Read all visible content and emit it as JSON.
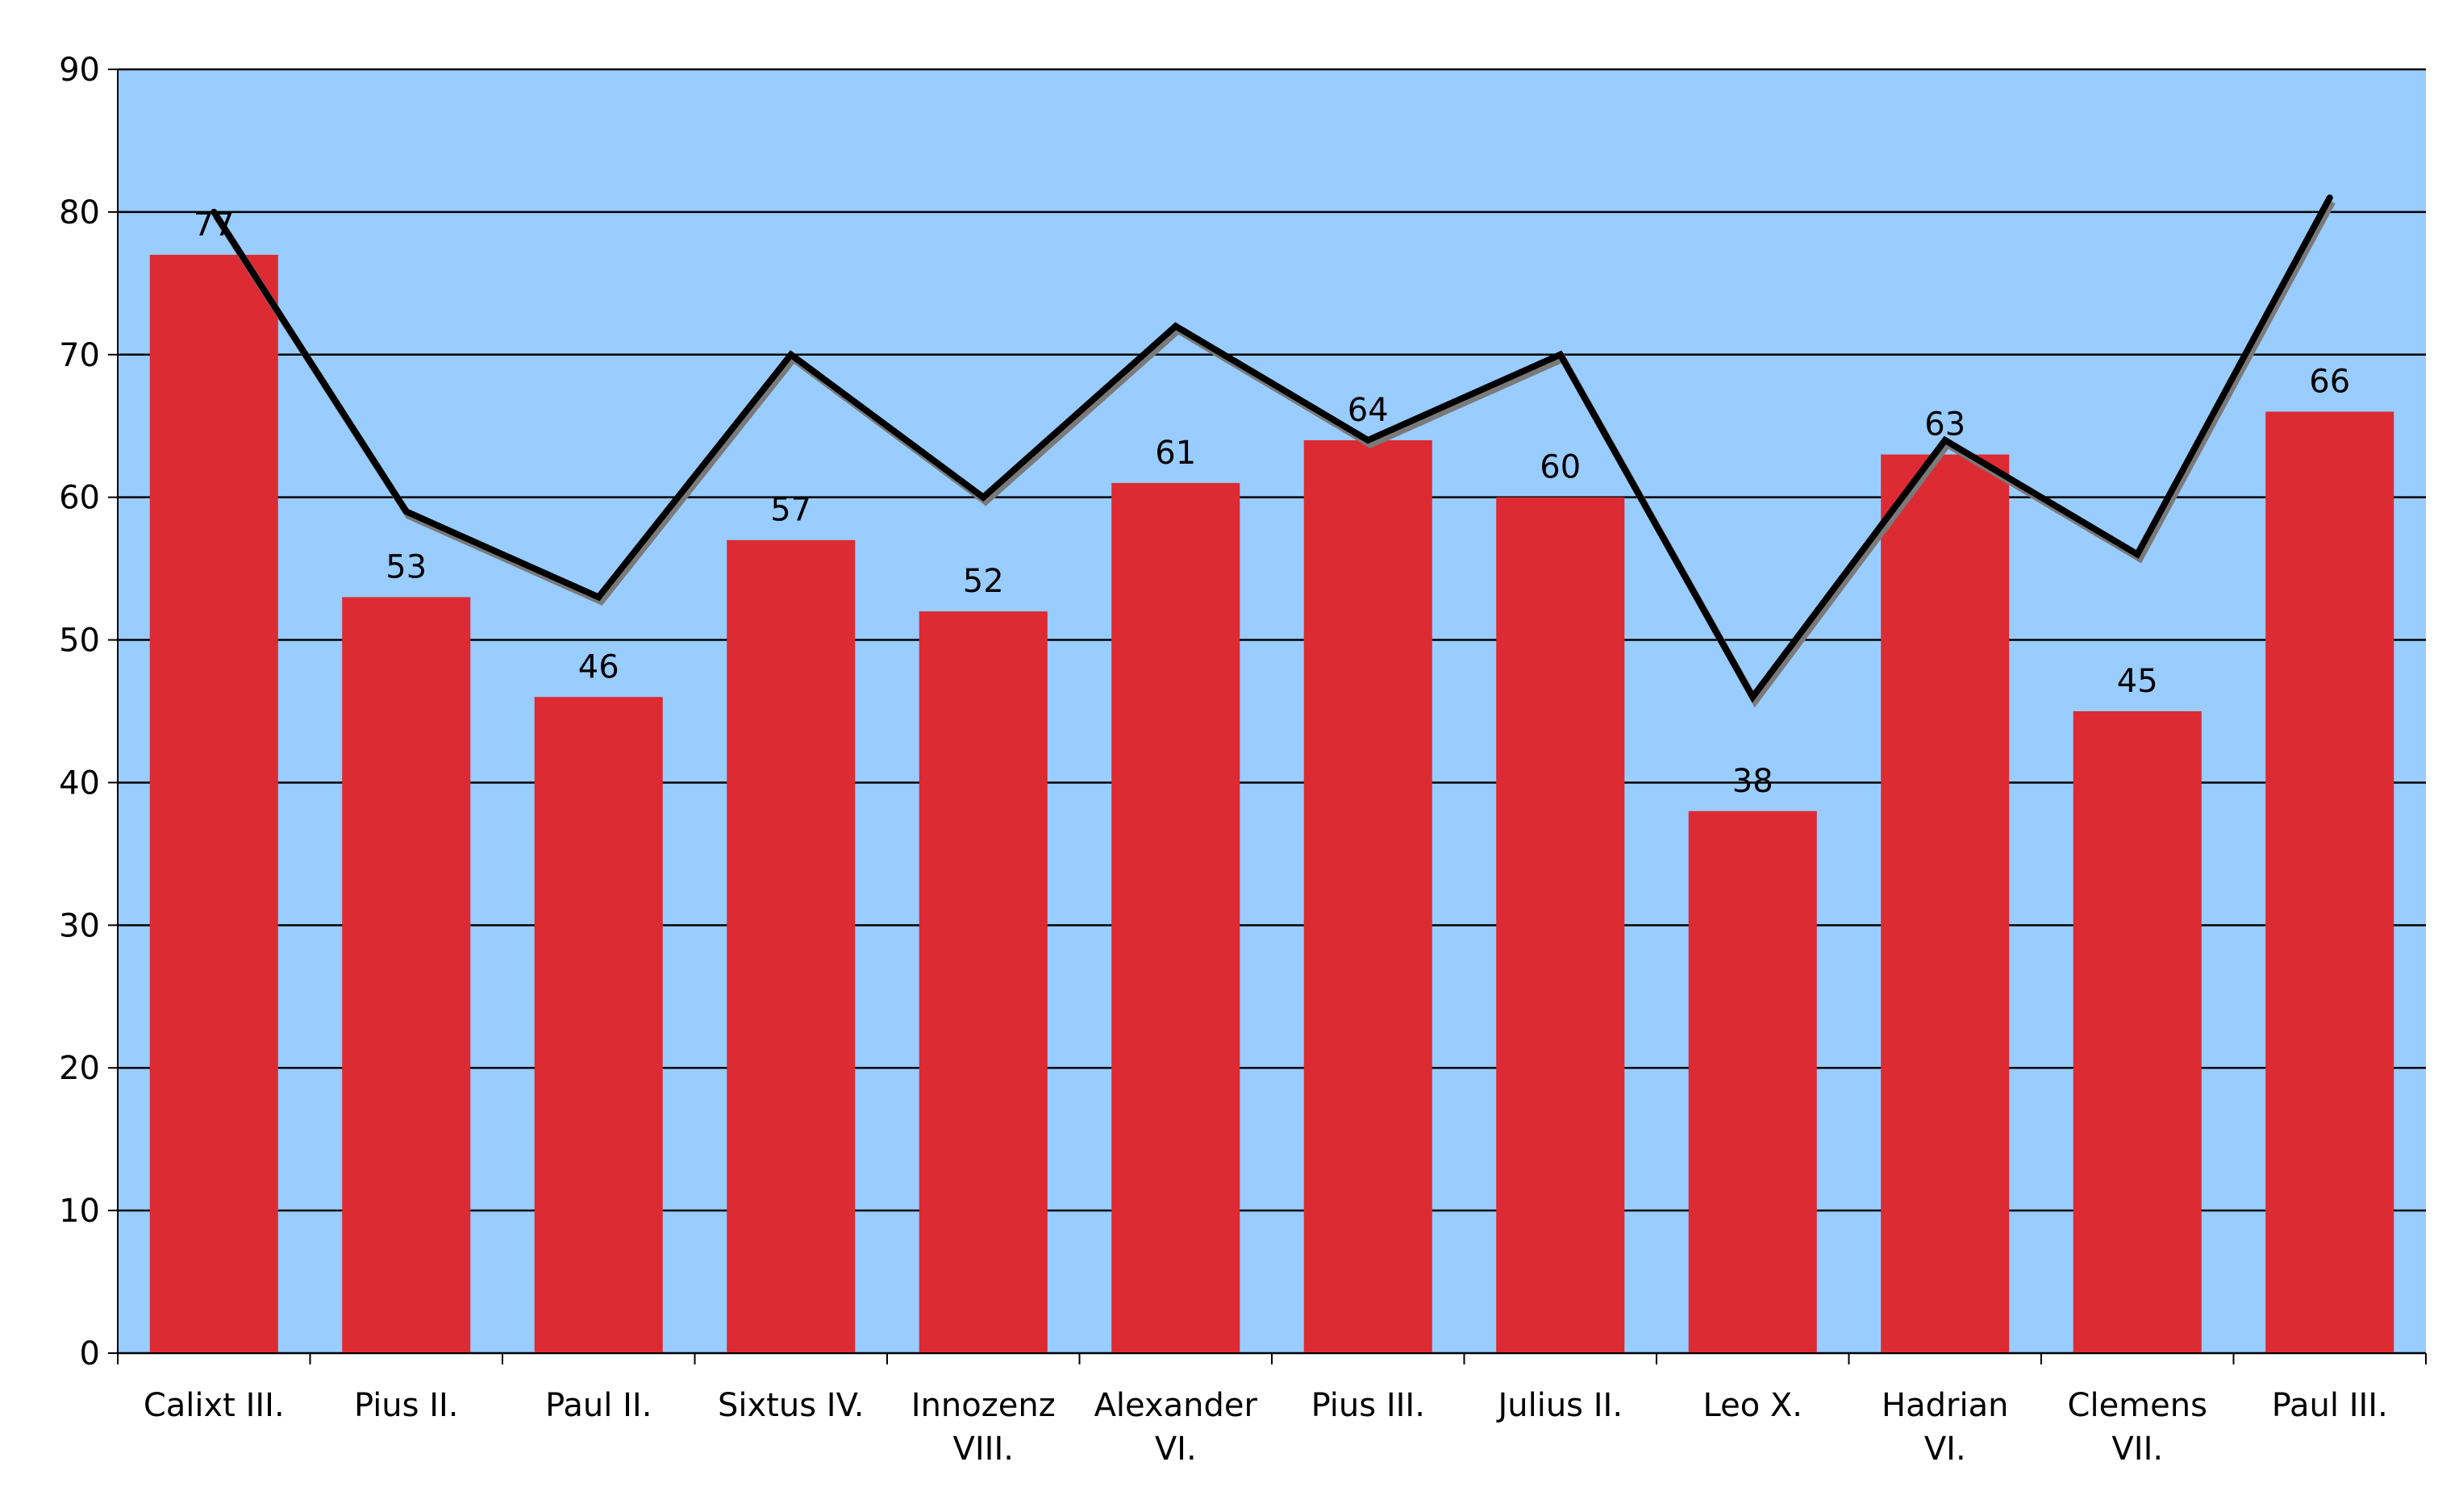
{
  "chart_data": {
    "type": "bar",
    "categories": [
      [
        "Calixt III."
      ],
      [
        "Pius II."
      ],
      [
        "Paul II."
      ],
      [
        "Sixtus IV."
      ],
      [
        "Innozenz",
        "VIII."
      ],
      [
        "Alexander",
        "VI."
      ],
      [
        "Pius III."
      ],
      [
        "Julius II."
      ],
      [
        "Leo X."
      ],
      [
        "Hadrian",
        "VI."
      ],
      [
        "Clemens",
        "VII."
      ],
      [
        "Paul III."
      ]
    ],
    "series": [
      {
        "type": "bar",
        "values": [
          77,
          53,
          46,
          57,
          52,
          61,
          64,
          60,
          38,
          63,
          45,
          66
        ],
        "color": "#dc2b33",
        "data_labels": true
      },
      {
        "type": "line",
        "values": [
          80,
          59,
          53,
          70,
          60,
          72,
          64,
          70,
          46,
          64,
          56,
          81
        ],
        "color": "#000000"
      }
    ],
    "ylim": [
      0,
      90
    ],
    "yticks": [
      0,
      10,
      20,
      30,
      40,
      50,
      60,
      70,
      80,
      90
    ],
    "grid": true,
    "background": "#99ccff"
  }
}
